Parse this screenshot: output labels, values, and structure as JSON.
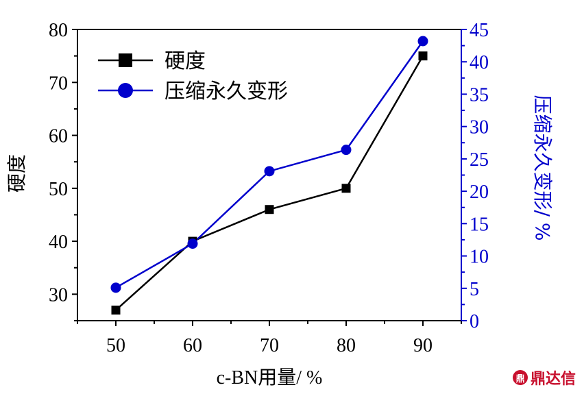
{
  "chart_data": {
    "type": "line",
    "x": [
      50,
      60,
      70,
      80,
      90
    ],
    "xlabel": "c-BN用量/ %",
    "xlim": [
      45,
      95
    ],
    "xticks": [
      50,
      60,
      70,
      80,
      90
    ],
    "ylabel_left": "硬度",
    "ylim_left": [
      25,
      80
    ],
    "yticks_left": [
      30,
      40,
      50,
      60,
      70,
      80
    ],
    "ylabel_right": "压缩永久变形/ %",
    "ylim_right": [
      0,
      45
    ],
    "yticks_right": [
      0,
      5,
      10,
      15,
      20,
      25,
      30,
      35,
      40,
      45
    ],
    "series": [
      {
        "name": "硬度",
        "axis": "left",
        "marker": "square",
        "color": "#000000",
        "values": [
          27,
          40,
          46,
          50,
          75
        ]
      },
      {
        "name": "压缩永久变形",
        "axis": "right",
        "marker": "circle",
        "color": "#0000cc",
        "values": [
          5.1,
          11.9,
          23.1,
          26.4,
          43.2
        ]
      }
    ],
    "legend_position": "top-left",
    "grid": false
  },
  "watermark": {
    "logo": "鼎",
    "text": "鼎达信"
  }
}
